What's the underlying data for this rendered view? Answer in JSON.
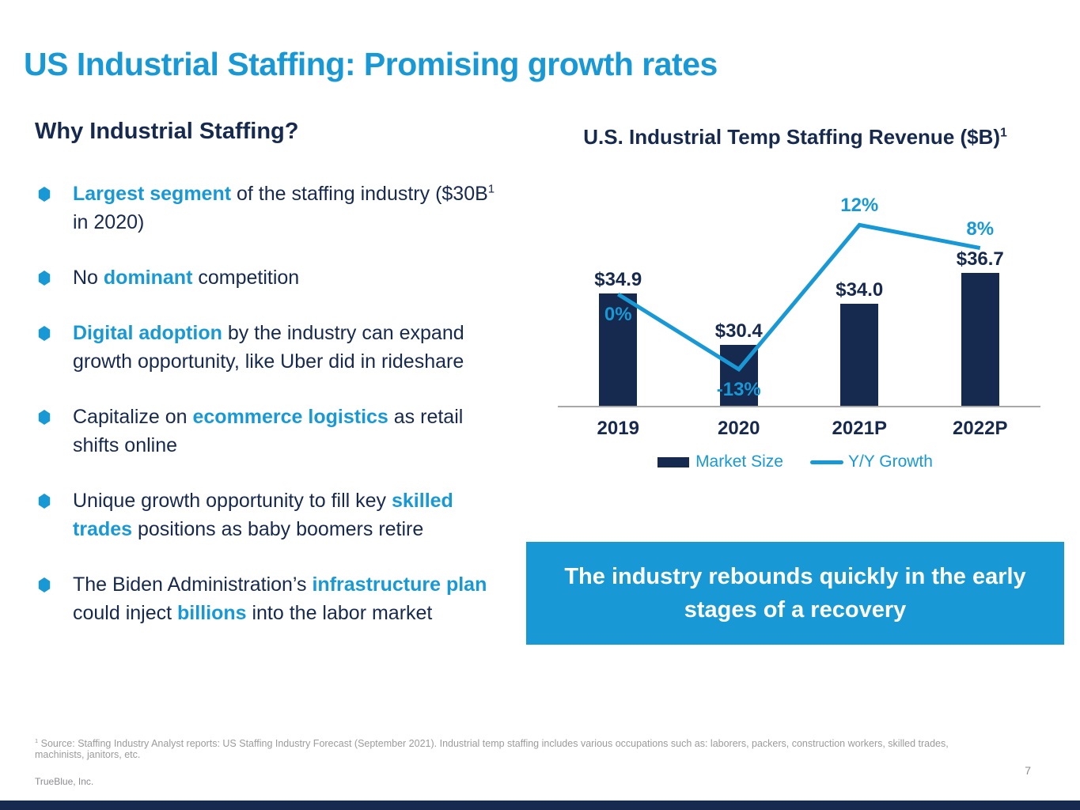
{
  "slide": {
    "title": "US Industrial Staffing: Promising growth rates",
    "page_number": "7",
    "footer_brand": "TrueBlue, Inc.",
    "footnote_sup": "1",
    "footnote": " Source: Staffing Industry Analyst reports: US Staffing Industry Forecast (September 2021). Industrial temp staffing includes various occupations such as: laborers, packers, construction workers, skilled trades, machinists, janitors, etc."
  },
  "left": {
    "heading": "Why Industrial Staffing?",
    "bullet_icon": "hexagon-bullet-icon",
    "bullets": [
      {
        "segments": [
          {
            "text": "Largest segment",
            "hl": true
          },
          {
            "text": " of the staffing industry ($30B"
          },
          {
            "text": "1",
            "sup": true
          },
          {
            "text": " in 2020)"
          }
        ]
      },
      {
        "segments": [
          {
            "text": "No "
          },
          {
            "text": "dominant",
            "hl": true
          },
          {
            "text": " competition"
          }
        ]
      },
      {
        "segments": [
          {
            "text": "Digital adoption",
            "hl": true
          },
          {
            "text": " by the industry can expand growth opportunity, like Uber did in rideshare"
          }
        ]
      },
      {
        "segments": [
          {
            "text": "Capitalize on "
          },
          {
            "text": "ecommerce logistics",
            "hl": true
          },
          {
            "text": " as retail shifts online"
          }
        ]
      },
      {
        "segments": [
          {
            "text": "Unique growth opportunity to fill key "
          },
          {
            "text": "skilled trades",
            "hl": true
          },
          {
            "text": " positions as baby boomers retire"
          }
        ]
      },
      {
        "segments": [
          {
            "text": "The Biden Administration’s "
          },
          {
            "text": "infrastructure plan",
            "hl": true
          },
          {
            "text": " could inject "
          },
          {
            "text": "billions",
            "hl": true
          },
          {
            "text": " into the labor market"
          }
        ]
      }
    ]
  },
  "chart_data": {
    "type": "bar",
    "title": "U.S. Industrial Temp Staffing Revenue ($B)",
    "title_sup": "1",
    "categories": [
      "2019",
      "2020",
      "2021P",
      "2022P"
    ],
    "series": [
      {
        "name": "Market Size",
        "type": "bar",
        "values": [
          34.9,
          30.4,
          34.0,
          36.7
        ],
        "labels": [
          "$34.9",
          "$30.4",
          "$34.0",
          "$36.7"
        ],
        "color": "#16294e"
      },
      {
        "name": "Y/Y Growth",
        "type": "line",
        "values": [
          0,
          -13,
          12,
          8
        ],
        "labels": [
          "0%",
          "-13%",
          "12%",
          "8%"
        ],
        "color": "#1899d6"
      }
    ],
    "bar_axis_implied_min": 25,
    "grid": false,
    "legend_position": "bottom"
  },
  "callout": {
    "text": "The industry rebounds quickly in the early stages of a recovery"
  },
  "colors": {
    "accent_blue": "#1899d6",
    "navy": "#16294e",
    "axis_gray": "#a8a8a8",
    "footnote_gray": "#9b9b9b",
    "callout_text": "#ffffff"
  }
}
